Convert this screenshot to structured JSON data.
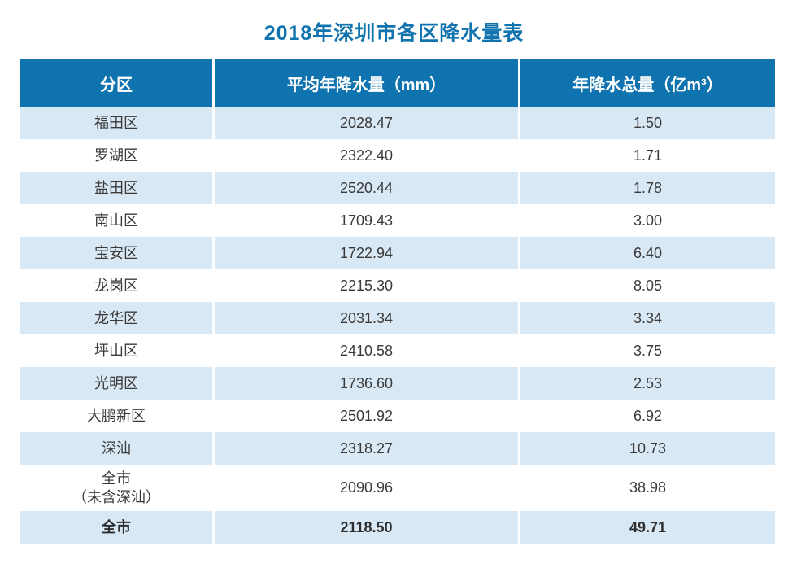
{
  "title": "2018年深圳市各区降水量表",
  "accent_colors": {
    "header_blue": "#0e73ae",
    "row_light_blue": "#d9e8f5",
    "title_blue": "#1274ae"
  },
  "table": {
    "headers": {
      "district": "分区",
      "avg_annual_precip_mm": "平均年降水量（mm）",
      "annual_precip_total": "年降水总量（亿m³）"
    },
    "rows": [
      {
        "district": "福田区",
        "avg_mm": "2028.47",
        "total": "1.50"
      },
      {
        "district": "罗湖区",
        "avg_mm": "2322.40",
        "total": "1.71"
      },
      {
        "district": "盐田区",
        "avg_mm": "2520.44",
        "total": "1.78"
      },
      {
        "district": "南山区",
        "avg_mm": "1709.43",
        "total": "3.00"
      },
      {
        "district": "宝安区",
        "avg_mm": "1722.94",
        "total": "6.40"
      },
      {
        "district": "龙岗区",
        "avg_mm": "2215.30",
        "total": "8.05"
      },
      {
        "district": "龙华区",
        "avg_mm": "2031.34",
        "total": "3.34"
      },
      {
        "district": "坪山区",
        "avg_mm": "2410.58",
        "total": "3.75"
      },
      {
        "district": "光明区",
        "avg_mm": "1736.60",
        "total": "2.53"
      },
      {
        "district": "大鹏新区",
        "avg_mm": "2501.92",
        "total": "6.92"
      },
      {
        "district": "深汕",
        "avg_mm": "2318.27",
        "total": "10.73"
      },
      {
        "district": "全市\n（未含深汕）",
        "avg_mm": "2090.96",
        "total": "38.98"
      },
      {
        "district": "全市",
        "avg_mm": "2118.50",
        "total": "49.71"
      }
    ]
  }
}
